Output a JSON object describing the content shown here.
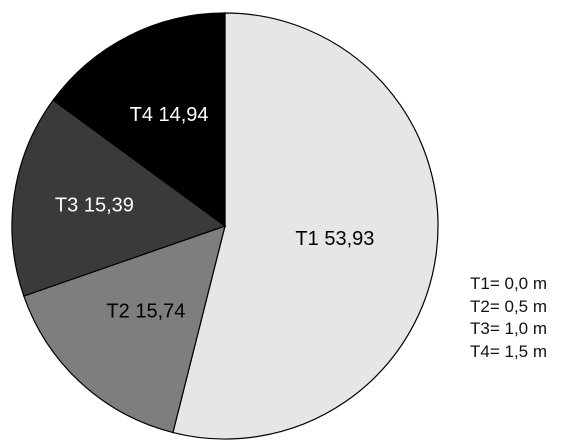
{
  "chart_data": {
    "type": "pie",
    "title": "",
    "slices": [
      {
        "name": "T1",
        "value": 53.93,
        "label": "T1 53,93",
        "color": "#e6e6e6",
        "label_color": "#000000"
      },
      {
        "name": "T2",
        "value": 15.74,
        "label": "T2 15,74",
        "color": "#7e7e7e",
        "label_color": "#000000"
      },
      {
        "name": "T3",
        "value": 15.39,
        "label": "T3 15,39",
        "color": "#3a3a3a",
        "label_color": "#ffffff"
      },
      {
        "name": "T4",
        "value": 14.94,
        "label": "T4 14,94",
        "color": "#000000",
        "label_color": "#ffffff"
      }
    ],
    "legend": {
      "placement": "bottom-right",
      "items": [
        "T1= 0,0 m",
        "T2= 0,5 m",
        "T3= 1,0 m",
        "T4= 1,5 m"
      ]
    }
  }
}
